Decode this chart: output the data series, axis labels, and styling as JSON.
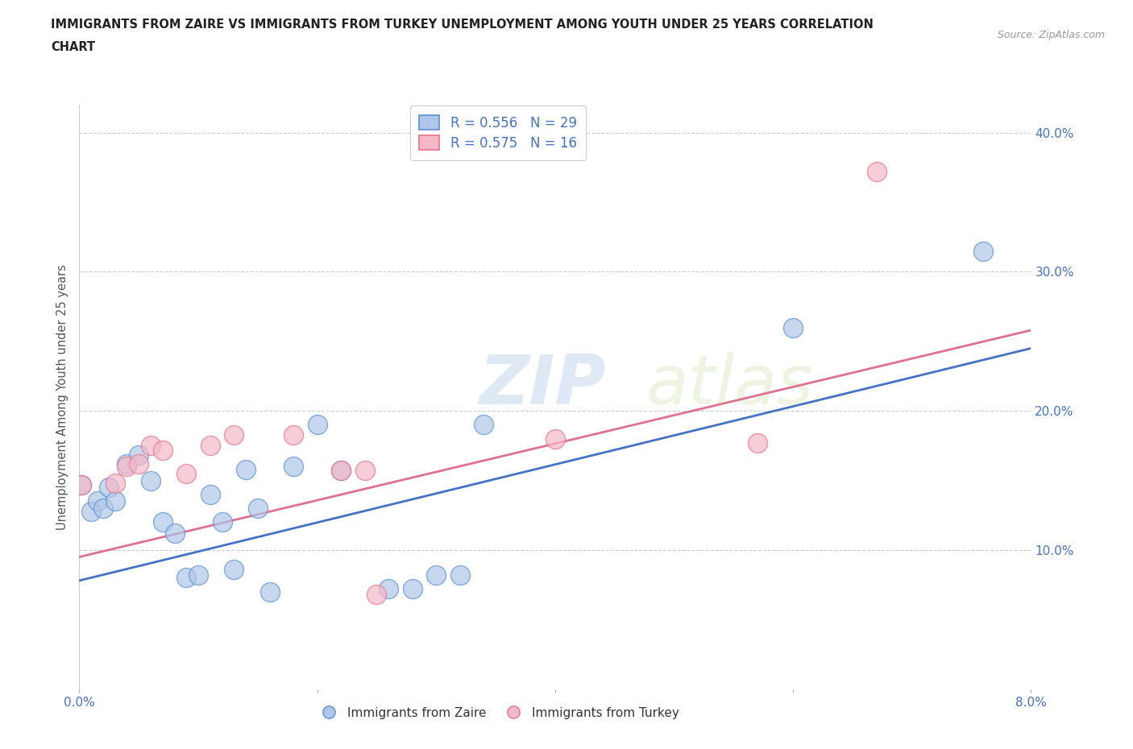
{
  "title_line1": "IMMIGRANTS FROM ZAIRE VS IMMIGRANTS FROM TURKEY UNEMPLOYMENT AMONG YOUTH UNDER 25 YEARS CORRELATION",
  "title_line2": "CHART",
  "source_text": "Source: ZipAtlas.com",
  "ylabel": "Unemployment Among Youth under 25 years",
  "xlim": [
    0.0,
    0.08
  ],
  "ylim": [
    0.0,
    0.42
  ],
  "x_ticks": [
    0.0,
    0.02,
    0.04,
    0.06,
    0.08
  ],
  "x_tick_labels": [
    "0.0%",
    "",
    "",
    "",
    "8.0%"
  ],
  "y_ticks": [
    0.0,
    0.1,
    0.2,
    0.3,
    0.4
  ],
  "y_tick_labels": [
    "",
    "10.0%",
    "20.0%",
    "30.0%",
    "40.0%"
  ],
  "zaire_color": "#aec6e8",
  "turkey_color": "#f4b8c8",
  "zaire_edge_color": "#5b8fd4",
  "turkey_edge_color": "#e8728a",
  "zaire_line_color": "#4472c4",
  "turkey_line_color": "#e07090",
  "legend_label_zaire": "R = 0.556   N = 29",
  "legend_label_turkey": "R = 0.575   N = 16",
  "bottom_legend_zaire": "Immigrants from Zaire",
  "bottom_legend_turkey": "Immigrants from Turkey",
  "watermark_zip": "ZIP",
  "watermark_atlas": "atlas",
  "background_color": "#ffffff",
  "grid_color": "#cccccc",
  "zaire_x": [
    0.0002,
    0.001,
    0.0015,
    0.002,
    0.0025,
    0.003,
    0.004,
    0.005,
    0.006,
    0.007,
    0.008,
    0.009,
    0.01,
    0.011,
    0.012,
    0.013,
    0.014,
    0.015,
    0.016,
    0.018,
    0.02,
    0.022,
    0.026,
    0.028,
    0.03,
    0.032,
    0.034,
    0.06,
    0.076
  ],
  "zaire_y": [
    0.147,
    0.128,
    0.135,
    0.13,
    0.145,
    0.135,
    0.162,
    0.168,
    0.15,
    0.12,
    0.112,
    0.08,
    0.082,
    0.14,
    0.12,
    0.086,
    0.158,
    0.13,
    0.07,
    0.16,
    0.19,
    0.157,
    0.072,
    0.072,
    0.082,
    0.082,
    0.19,
    0.26,
    0.315
  ],
  "turkey_x": [
    0.0002,
    0.003,
    0.004,
    0.005,
    0.006,
    0.007,
    0.009,
    0.011,
    0.013,
    0.018,
    0.022,
    0.024,
    0.025,
    0.04,
    0.057,
    0.067
  ],
  "turkey_y": [
    0.147,
    0.148,
    0.16,
    0.162,
    0.175,
    0.172,
    0.155,
    0.175,
    0.183,
    0.183,
    0.157,
    0.157,
    0.068,
    0.18,
    0.177,
    0.372
  ],
  "zaire_line_x0": 0.0,
  "zaire_line_y0": 0.078,
  "zaire_line_x1": 0.08,
  "zaire_line_y1": 0.245,
  "turkey_line_x0": 0.0,
  "turkey_line_y0": 0.095,
  "turkey_line_x1": 0.08,
  "turkey_line_y1": 0.258
}
